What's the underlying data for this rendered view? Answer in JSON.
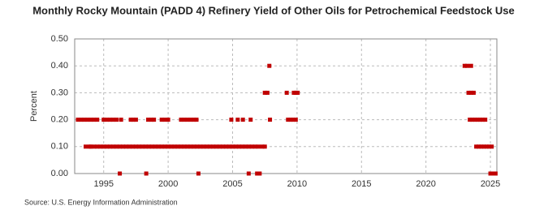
{
  "chart_data": {
    "type": "scatter",
    "title": "Monthly Rocky Mountain (PADD 4) Refinery Yield of Other Oils for Petrochemical Feedstock Use",
    "y_label": "Percent",
    "source": "Source: U.S. Energy Information Administration",
    "xlim": [
      1992.75,
      2025.5
    ],
    "xticks": [
      1995,
      2000,
      2005,
      2010,
      2015,
      2020,
      2025
    ],
    "ylim": [
      0,
      0.5
    ],
    "yticks": [
      {
        "value": 0,
        "label": "0.00"
      },
      {
        "value": 0.1,
        "label": "0.10"
      },
      {
        "value": 0.2,
        "label": "0.20"
      },
      {
        "value": 0.3,
        "label": "0.30"
      },
      {
        "value": 0.4,
        "label": "0.40"
      },
      {
        "value": 0.5,
        "label": "0.50"
      }
    ],
    "grid": true,
    "color": "#c00000",
    "x": [
      1993.0,
      1993.25,
      1993.5,
      1993.75,
      1994.0,
      1994.25,
      1994.5,
      1993.6,
      1993.9,
      1994.0,
      1994.25,
      1994.5,
      1994.75,
      1995.0,
      1995.25,
      1995.5,
      1995.75,
      1996.0,
      1996.25,
      1996.5,
      1996.75,
      1997.0,
      1997.25,
      1997.5,
      1997.75,
      1998.0,
      1998.25,
      1998.5,
      1998.75,
      1999.0,
      1999.25,
      1999.5,
      1999.75,
      2000.0,
      2000.25,
      2000.5,
      2000.75,
      2001.0,
      2001.25,
      2001.5,
      2001.75,
      2002.0,
      2002.25,
      2002.5,
      2002.75,
      2003.0,
      2003.25,
      2003.5,
      2003.75,
      2004.0,
      2004.25,
      2004.5,
      2004.75,
      2005.0,
      2005.25,
      2005.5,
      2005.75,
      2006.0,
      2006.25,
      2006.5,
      2006.75,
      2007.0,
      2007.3,
      2007.5,
      1995.0,
      1995.25,
      1995.5,
      1995.75,
      1996.0,
      1996.35,
      1997.1,
      1997.3,
      1997.5,
      1998.45,
      1998.7,
      1998.9,
      1999.5,
      1999.75,
      2000.0,
      2001.0,
      2001.25,
      2001.5,
      2001.75,
      2002.0,
      2002.2,
      2004.9,
      2005.4,
      2005.8,
      2006.4,
      2007.9,
      2009.3,
      2009.5,
      2009.7,
      2009.9,
      1996.25,
      1998.3,
      2002.35,
      2006.25,
      2006.9,
      2007.1,
      2007.5,
      2007.7,
      2009.2,
      2009.75,
      2009.9,
      2010.05,
      2007.85,
      2023.0,
      2023.2,
      2023.5,
      2023.3,
      2023.5,
      2023.7,
      2023.4,
      2023.6,
      2023.8,
      2024.0,
      2024.2,
      2024.4,
      2024.6,
      2023.9,
      2024.1,
      2024.3,
      2024.5,
      2024.7,
      2024.9,
      2025.1,
      2025.0,
      2025.2,
      2025.4
    ],
    "values": [
      0.2,
      0.2,
      0.2,
      0.2,
      0.2,
      0.2,
      0.2,
      0.1,
      0.1,
      0.1,
      0.1,
      0.1,
      0.1,
      0.1,
      0.1,
      0.1,
      0.1,
      0.1,
      0.1,
      0.1,
      0.1,
      0.1,
      0.1,
      0.1,
      0.1,
      0.1,
      0.1,
      0.1,
      0.1,
      0.1,
      0.1,
      0.1,
      0.1,
      0.1,
      0.1,
      0.1,
      0.1,
      0.1,
      0.1,
      0.1,
      0.1,
      0.1,
      0.1,
      0.1,
      0.1,
      0.1,
      0.1,
      0.1,
      0.1,
      0.1,
      0.1,
      0.1,
      0.1,
      0.1,
      0.1,
      0.1,
      0.1,
      0.1,
      0.1,
      0.1,
      0.1,
      0.1,
      0.1,
      0.1,
      0.2,
      0.2,
      0.2,
      0.2,
      0.2,
      0.2,
      0.2,
      0.2,
      0.2,
      0.2,
      0.2,
      0.2,
      0.2,
      0.2,
      0.2,
      0.2,
      0.2,
      0.2,
      0.2,
      0.2,
      0.2,
      0.2,
      0.2,
      0.2,
      0.2,
      0.2,
      0.2,
      0.2,
      0.2,
      0.2,
      0,
      0,
      0,
      0,
      0,
      0,
      0.3,
      0.3,
      0.3,
      0.3,
      0.3,
      0.3,
      0.4,
      0.4,
      0.4,
      0.4,
      0.3,
      0.3,
      0.3,
      0.2,
      0.2,
      0.2,
      0.2,
      0.2,
      0.2,
      0.2,
      0.1,
      0.1,
      0.1,
      0.1,
      0.1,
      0.1,
      0.1,
      0,
      0,
      0
    ]
  }
}
